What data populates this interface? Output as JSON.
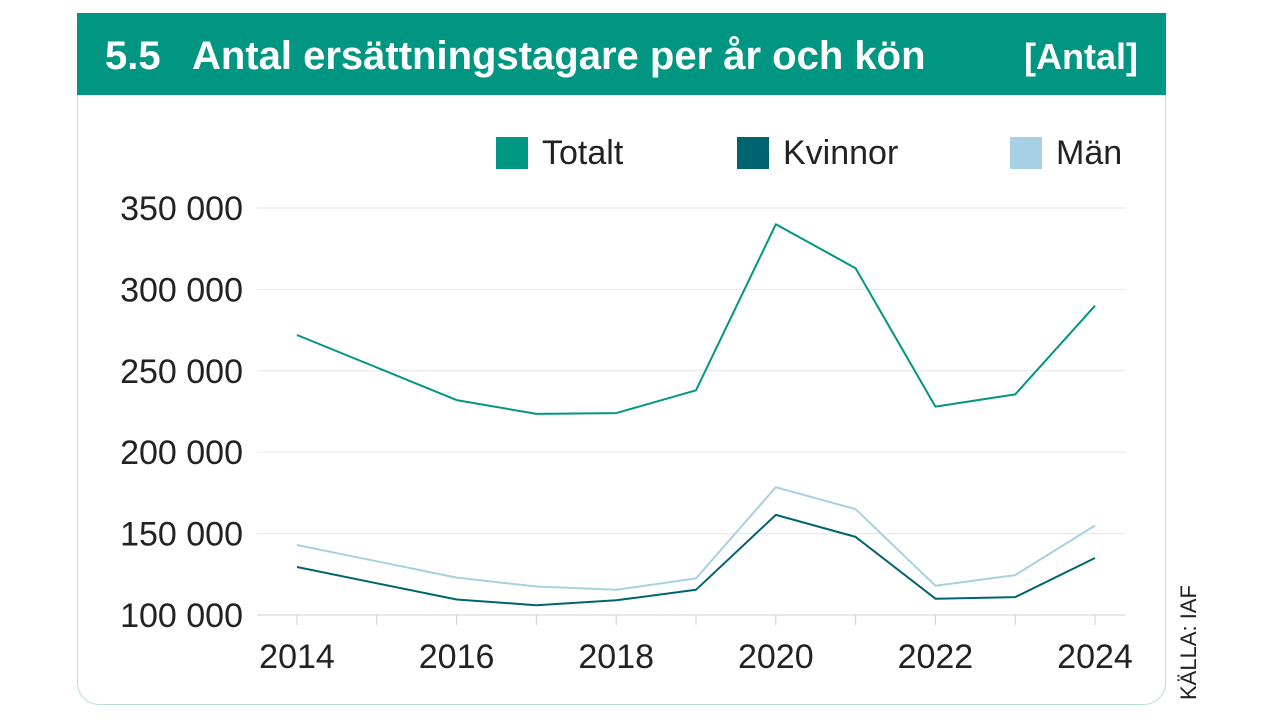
{
  "header": {
    "number": "5.5",
    "title": "Antal ersättningstagare per år och kön",
    "unit": "[Antal]"
  },
  "source": "KÄLLA: IAF",
  "colors": {
    "brand": "#009682",
    "totalt": "#009682",
    "kvinnor": "#006470",
    "man": "#a6d0e4"
  },
  "chart_data": {
    "type": "line",
    "x": [
      2014,
      2015,
      2016,
      2017,
      2018,
      2019,
      2020,
      2021,
      2022,
      2023,
      2024
    ],
    "x_ticks": [
      "2014",
      "2016",
      "2018",
      "2020",
      "2022",
      "2024"
    ],
    "y_ticks": [
      "100 000",
      "150 000",
      "200 000",
      "250 000",
      "300 000",
      "350 000"
    ],
    "ylim": [
      100000,
      350000
    ],
    "grid": true,
    "legend_position": "top-right",
    "series": [
      {
        "name": "Totalt",
        "color": "#009682",
        "values": [
          272000,
          252000,
          232000,
          223500,
          224000,
          238000,
          340000,
          313000,
          228000,
          235500,
          290000
        ]
      },
      {
        "name": "Kvinnor",
        "color": "#006470",
        "values": [
          129500,
          119500,
          109500,
          106000,
          109000,
          115500,
          161500,
          148000,
          110000,
          111000,
          135000
        ]
      },
      {
        "name": "Män",
        "color": "#a6d0e4",
        "values": [
          143000,
          133000,
          123000,
          117500,
          115500,
          122500,
          178500,
          165000,
          118000,
          124500,
          155000
        ]
      }
    ]
  }
}
